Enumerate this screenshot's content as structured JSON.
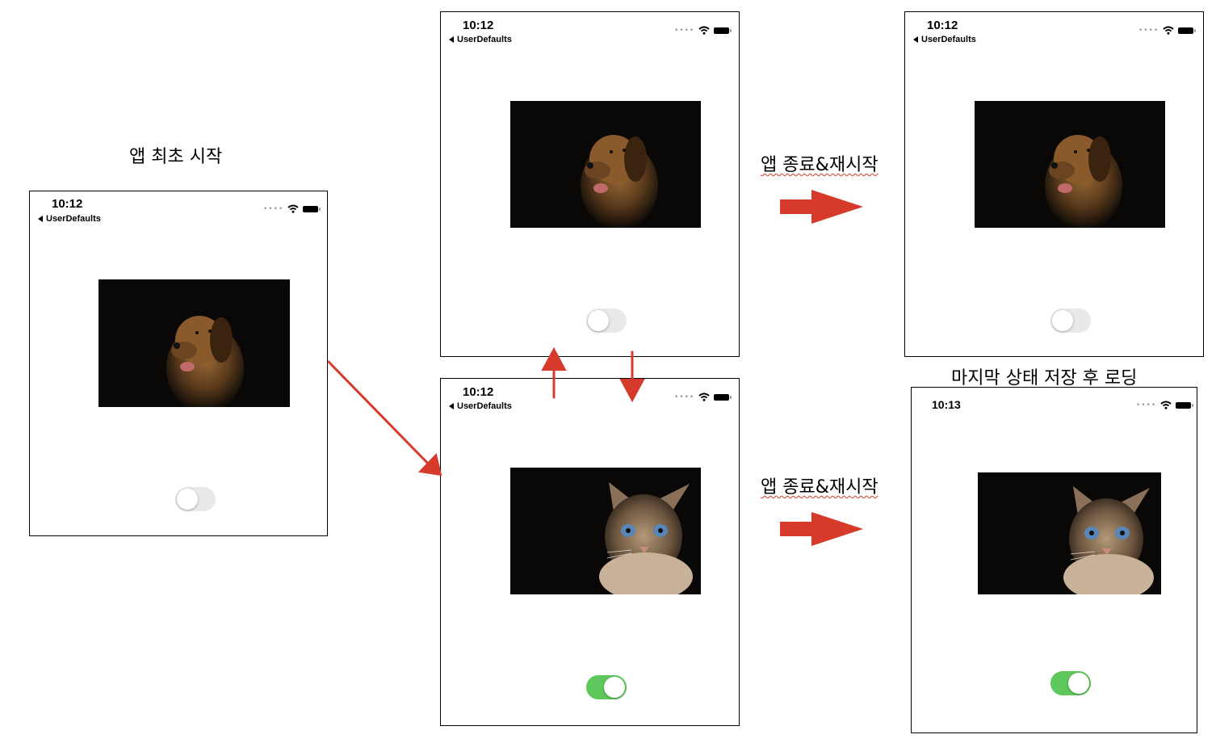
{
  "captions": {
    "first_launch": "앱 최초 시작",
    "restart_top": "앱 종료&재시작",
    "restart_bottom": "앱 종료&재시작",
    "restore_note": "마지막 상태 저장 후 로딩"
  },
  "screens": {
    "initial": {
      "time": "10:12",
      "back_label": "UserDefaults",
      "photo": "dog",
      "toggle_on": false
    },
    "top_middle": {
      "time": "10:12",
      "back_label": "UserDefaults",
      "photo": "dog",
      "toggle_on": false
    },
    "bottom_middle": {
      "time": "10:12",
      "back_label": "UserDefaults",
      "photo": "cat",
      "toggle_on": true
    },
    "top_right": {
      "time": "10:12",
      "back_label": "UserDefaults",
      "photo": "dog",
      "toggle_on": false
    },
    "bottom_right": {
      "time": "10:13",
      "back_label": "",
      "photo": "cat",
      "toggle_on": true
    }
  },
  "icons": {
    "signal": "signal-dots-icon",
    "wifi": "wifi-icon",
    "battery": "battery-icon",
    "back": "back-arrow-icon"
  },
  "colors": {
    "arrow": "#d63a2a",
    "toggle_on": "#5fc85d",
    "toggle_off": "#e9e9ea",
    "photo_bg": "#0a0806"
  }
}
